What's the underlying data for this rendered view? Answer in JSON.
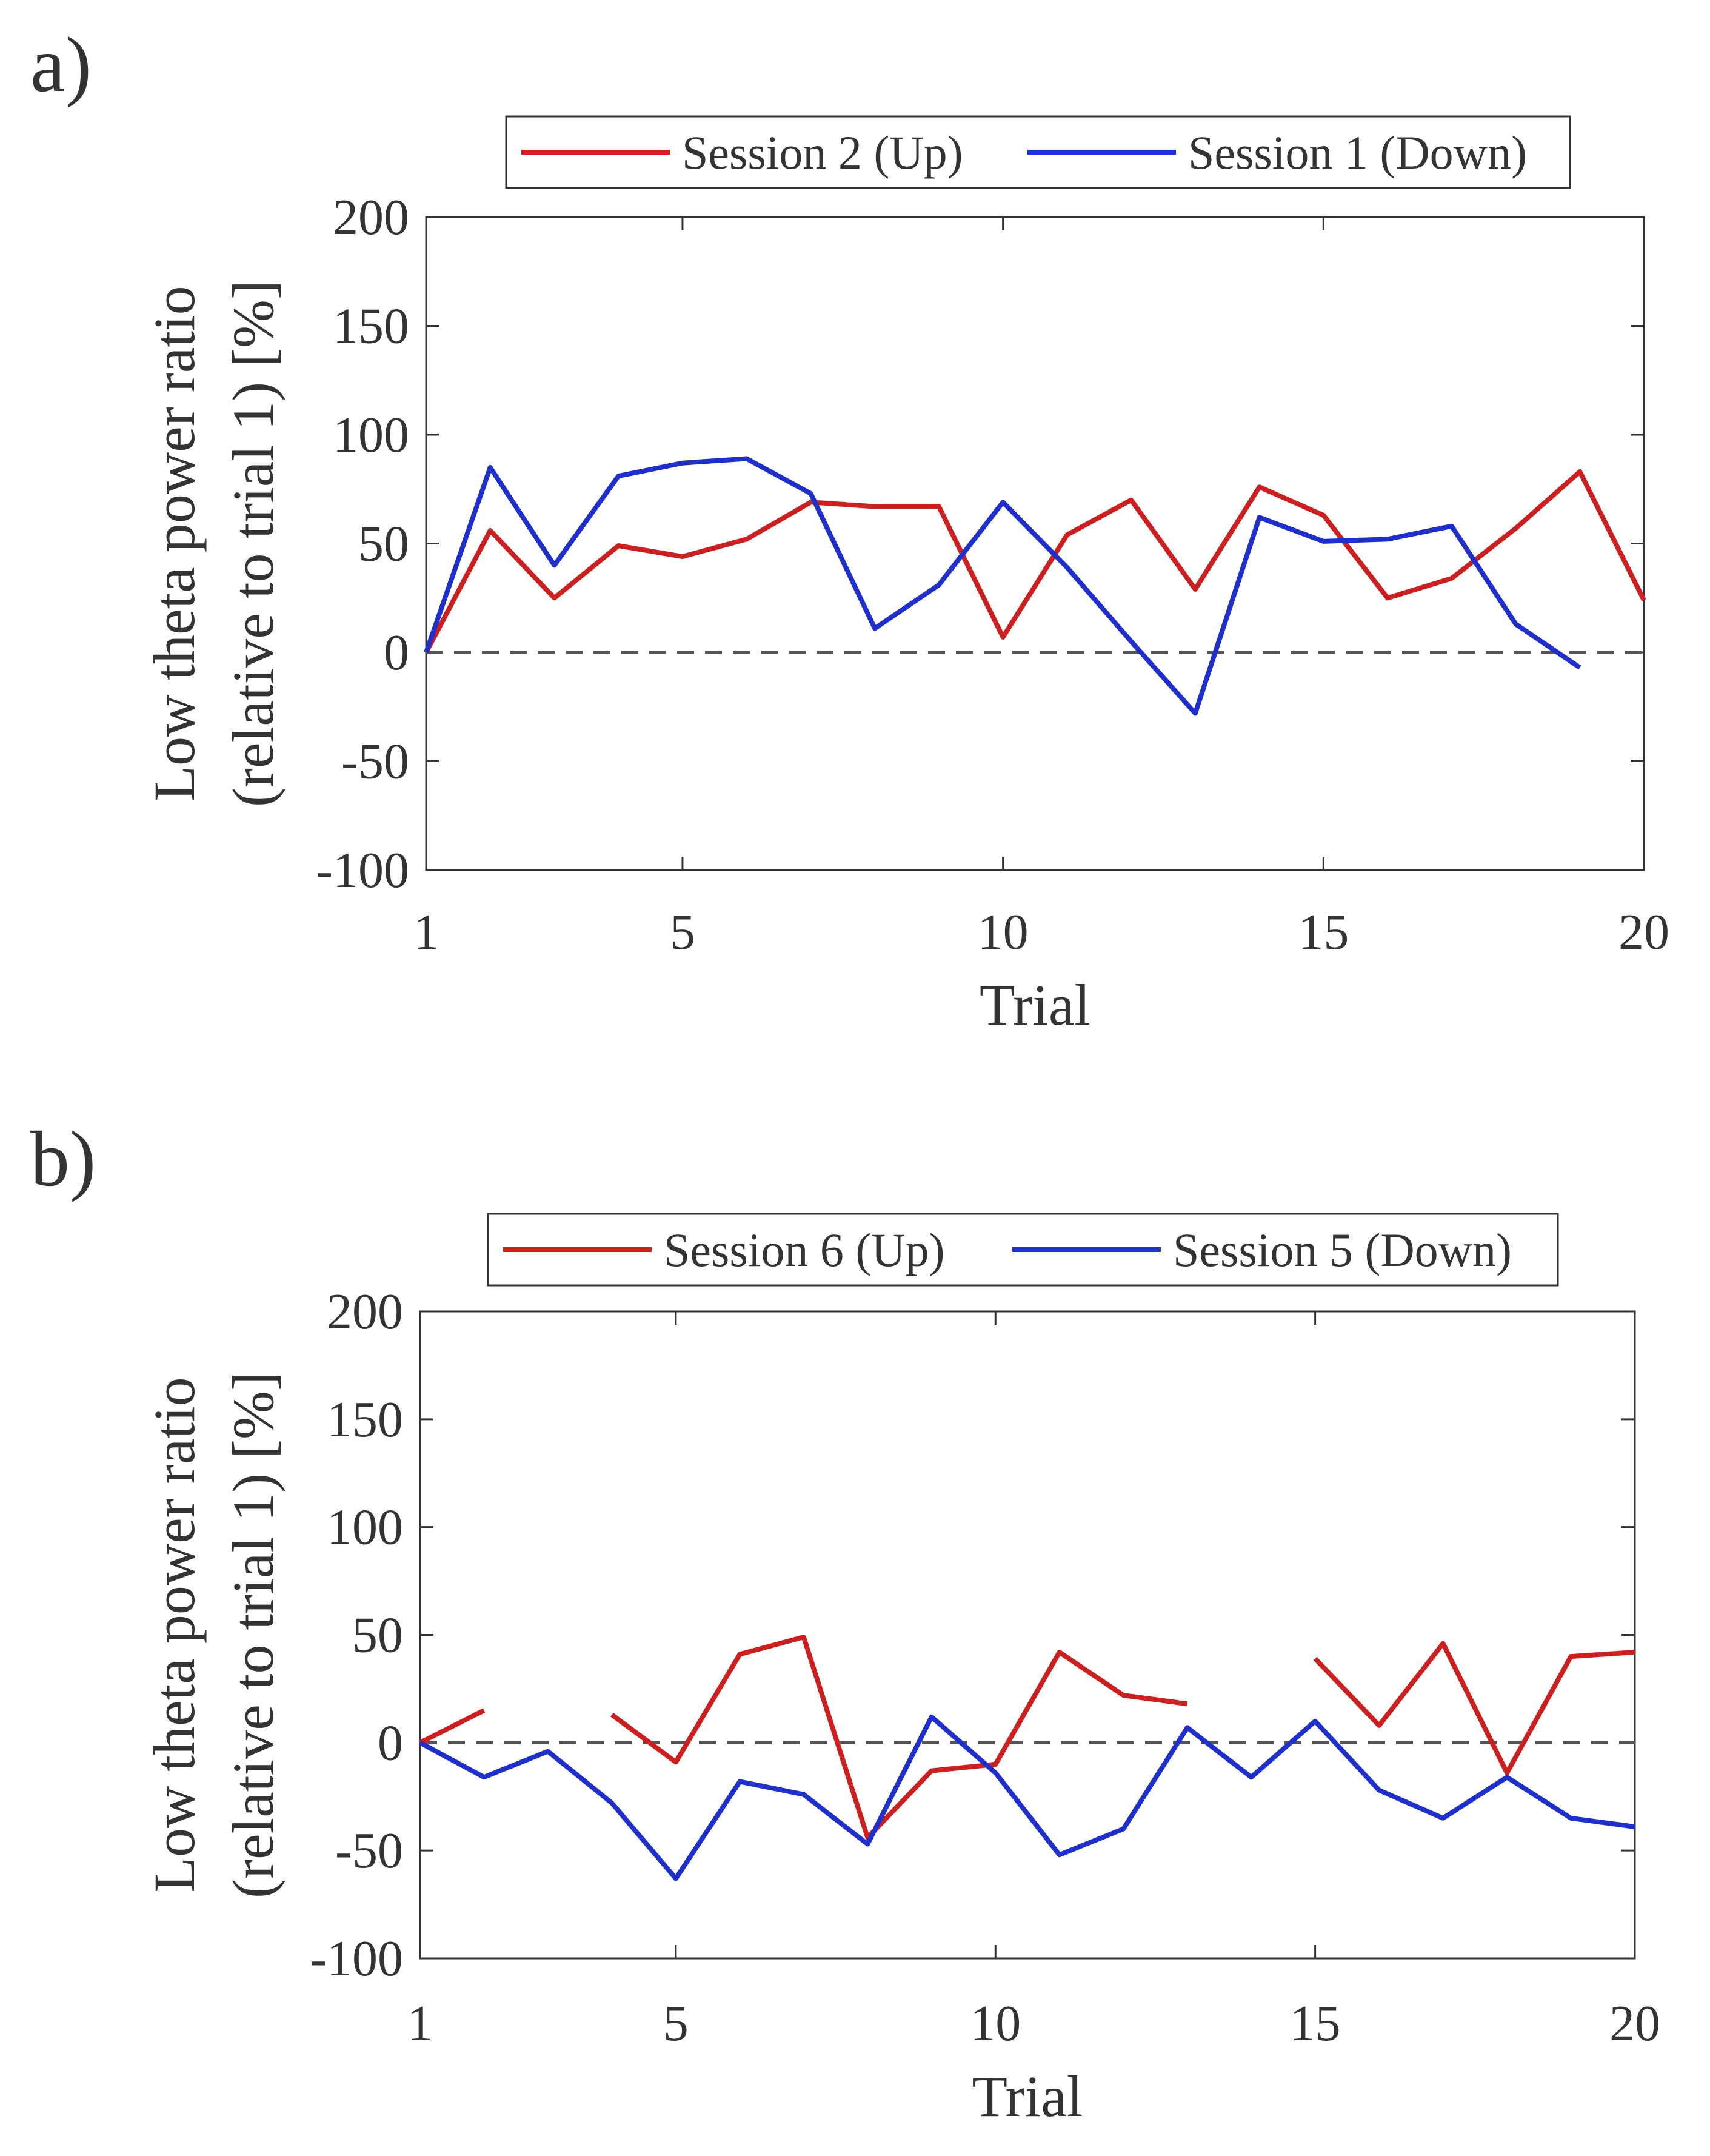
{
  "figure": {
    "panels": [
      {
        "label": "a)"
      },
      {
        "label": "b)"
      }
    ]
  },
  "chart_data": [
    {
      "type": "line",
      "panel_label": "a)",
      "xlabel": "Trial",
      "ylabel_lines": [
        "Low theta power ratio",
        "(relative to trial 1) [%]"
      ],
      "xlim": [
        1,
        20
      ],
      "ylim": [
        -100,
        200
      ],
      "xticks": [
        1,
        5,
        10,
        15,
        20
      ],
      "yticks": [
        200,
        150,
        100,
        50,
        0,
        -50,
        -100
      ],
      "grid": false,
      "legend_position": "top-center, above axes",
      "reference_line": {
        "y": 0,
        "style": "dashed",
        "color": "#555555"
      },
      "series": [
        {
          "name": "Session 2 (Up)",
          "color": "#CC1F1F",
          "x": [
            1,
            2,
            3,
            4,
            5,
            6,
            7,
            8,
            9,
            10,
            11,
            12,
            13,
            14,
            15,
            16,
            17,
            18,
            19,
            20
          ],
          "y": [
            0,
            56,
            25,
            49,
            44,
            52,
            69,
            67,
            67,
            7,
            54,
            70,
            29,
            76,
            63,
            25,
            34,
            57,
            83,
            24
          ]
        },
        {
          "name": "Session 1 (Down)",
          "color": "#1F2FCC",
          "x": [
            1,
            2,
            3,
            4,
            5,
            6,
            7,
            8,
            9,
            10,
            11,
            12,
            13,
            14,
            15,
            16,
            17,
            18,
            19
          ],
          "y": [
            0,
            85,
            40,
            81,
            87,
            89,
            73,
            11,
            31,
            69,
            39,
            5,
            -28,
            62,
            51,
            52,
            58,
            13,
            -7
          ]
        }
      ]
    },
    {
      "type": "line",
      "panel_label": "b)",
      "xlabel": "Trial",
      "ylabel_lines": [
        "Low theta power ratio",
        "(relative to trial 1) [%]"
      ],
      "xlim": [
        1,
        20
      ],
      "ylim": [
        -100,
        200
      ],
      "xticks": [
        1,
        5,
        10,
        15,
        20
      ],
      "yticks": [
        200,
        150,
        100,
        50,
        0,
        -50,
        -100
      ],
      "grid": false,
      "legend_position": "top-center, above axes",
      "reference_line": {
        "y": 0,
        "style": "dashed",
        "color": "#555555"
      },
      "series": [
        {
          "name": "Session 6 (Up)",
          "color": "#CC1F1F",
          "x": [
            1,
            2,
            3,
            4,
            5,
            6,
            7,
            8,
            9,
            10,
            11,
            12,
            13,
            14,
            15,
            16,
            17,
            18,
            19,
            20
          ],
          "y": [
            0,
            15,
            null,
            13,
            -9,
            41,
            49,
            -44,
            -13,
            -10,
            42,
            22,
            18,
            null,
            39,
            8,
            46,
            -14,
            40,
            42
          ]
        },
        {
          "name": "Session 5 (Down)",
          "color": "#1F2FCC",
          "x": [
            1,
            2,
            3,
            4,
            5,
            6,
            7,
            8,
            9,
            10,
            11,
            12,
            13,
            14,
            15,
            16,
            17,
            18,
            19,
            20
          ],
          "y": [
            0,
            -16,
            -4,
            -28,
            -63,
            -18,
            -24,
            -47,
            12,
            -14,
            -52,
            -40,
            7,
            -16,
            10,
            -22,
            -35,
            -16,
            -35,
            -39
          ]
        }
      ]
    }
  ]
}
